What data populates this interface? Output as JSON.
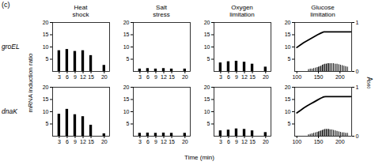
{
  "title": "(c)",
  "xlabel": "Time (min)",
  "ylabel": "mRNA induction ratio",
  "y2label": "A₅₆₀",
  "chart_data": [
    {
      "type": "bar",
      "title": "Heat\nshock",
      "annotations": [
        "groEL"
      ],
      "color": "black",
      "x": [
        3,
        6,
        9,
        12,
        15,
        20
      ],
      "values": [
        8.5,
        9.0,
        8.2,
        8.5,
        6.5,
        2.5
      ],
      "xlim": [
        0.5,
        22
      ],
      "xticks": [
        3,
        6,
        9,
        12,
        15,
        20
      ],
      "ylim": [
        0,
        20
      ],
      "yticks": [
        5,
        10,
        15,
        20
      ]
    },
    {
      "type": "bar",
      "title": "Salt\nstress",
      "color": "black",
      "x": [
        3,
        6,
        9,
        12,
        15,
        20
      ],
      "values": [
        1.0,
        1.2,
        1.0,
        1.2,
        1.0,
        1.0
      ],
      "xlim": [
        0.5,
        22
      ],
      "xticks": [
        3,
        6,
        9,
        12,
        15,
        20
      ],
      "ylim": [
        0,
        20
      ],
      "yticks": [
        5,
        10,
        15,
        20
      ]
    },
    {
      "type": "bar",
      "title": "Oxygen\nlimitation",
      "color": "black",
      "x": [
        3,
        6,
        9,
        12,
        15,
        20
      ],
      "values": [
        3.5,
        4.0,
        4.2,
        3.8,
        3.0,
        1.8
      ],
      "xlim": [
        0.5,
        22
      ],
      "xticks": [
        3,
        6,
        9,
        12,
        15,
        20
      ],
      "ylim": [
        0,
        20
      ],
      "yticks": [
        5,
        10,
        15,
        20
      ]
    },
    {
      "type": "line",
      "title": "Glucose\nlimitation",
      "xlim": [
        95,
        227
      ],
      "xticks": [
        100,
        150,
        200
      ],
      "ylim": [
        0,
        20
      ],
      "yticks": [
        5,
        10,
        15,
        20
      ],
      "y2lim": [
        0,
        1
      ],
      "y2ticks": [
        0,
        1
      ],
      "series": [
        {
          "type": "line",
          "color": "black",
          "x": [
            100,
            108,
            116,
            124,
            132,
            140,
            148,
            155,
            160,
            163,
            167,
            175,
            185,
            200,
            215,
            225
          ],
          "values": [
            9.8,
            10.8,
            11.8,
            12.6,
            13.4,
            14.2,
            15.0,
            15.6,
            16.0,
            16.2,
            16.2,
            16.2,
            16.2,
            16.2,
            16.2,
            16.2
          ]
        },
        {
          "type": "bar",
          "axis": "y2",
          "color": "black",
          "x": [
            128,
            132,
            136,
            140,
            144,
            148,
            151,
            154,
            157,
            160,
            163,
            166,
            169,
            172,
            175,
            178,
            182,
            186,
            190,
            194,
            198,
            202,
            206,
            210,
            214,
            218
          ],
          "values": [
            0.04,
            0.05,
            0.05,
            0.06,
            0.07,
            0.08,
            0.09,
            0.1,
            0.11,
            0.13,
            0.14,
            0.15,
            0.15,
            0.16,
            0.16,
            0.16,
            0.16,
            0.16,
            0.15,
            0.15,
            0.14,
            0.13,
            0.12,
            0.11,
            0.1,
            0.09
          ]
        }
      ]
    },
    {
      "type": "bar",
      "annotations": [
        "dnaK"
      ],
      "color": "black",
      "x": [
        3,
        6,
        9,
        12,
        15,
        20
      ],
      "values": [
        9.0,
        11.0,
        8.8,
        8.0,
        4.5,
        1.0
      ],
      "xlim": [
        0.5,
        22
      ],
      "xticks": [
        3,
        6,
        9,
        12,
        15,
        20
      ],
      "ylim": [
        0,
        20
      ],
      "yticks": [
        5,
        10,
        15,
        20
      ]
    },
    {
      "type": "bar",
      "color": "black",
      "x": [
        3,
        6,
        9,
        12,
        15,
        20
      ],
      "values": [
        1.2,
        1.3,
        1.2,
        1.3,
        1.2,
        1.2
      ],
      "xlim": [
        0.5,
        22
      ],
      "xticks": [
        3,
        6,
        9,
        12,
        15,
        20
      ],
      "ylim": [
        0,
        20
      ],
      "yticks": [
        5,
        10,
        15,
        20
      ]
    },
    {
      "type": "bar",
      "color": "black",
      "x": [
        3,
        6,
        9,
        12,
        15,
        20
      ],
      "values": [
        2.2,
        2.5,
        3.0,
        2.8,
        2.2,
        1.5
      ],
      "xlim": [
        0.5,
        22
      ],
      "xticks": [
        3,
        6,
        9,
        12,
        15,
        20
      ],
      "ylim": [
        0,
        20
      ],
      "yticks": [
        5,
        10,
        15,
        20
      ]
    },
    {
      "type": "line",
      "xlim": [
        95,
        227
      ],
      "xticks": [
        100,
        150,
        200
      ],
      "ylim": [
        0,
        20
      ],
      "yticks": [
        5,
        10,
        15,
        20
      ],
      "y2lim": [
        0,
        1
      ],
      "y2ticks": [
        0,
        1
      ],
      "series": [
        {
          "type": "line",
          "color": "black",
          "x": [
            100,
            108,
            116,
            124,
            132,
            140,
            148,
            155,
            160,
            163,
            167,
            175,
            185,
            200,
            215,
            225
          ],
          "values": [
            9.5,
            10.5,
            11.5,
            12.4,
            13.2,
            14.0,
            14.8,
            15.5,
            15.9,
            16.1,
            16.2,
            16.2,
            16.2,
            16.2,
            16.2,
            16.2
          ]
        },
        {
          "type": "bar",
          "axis": "y2",
          "color": "black",
          "x": [
            128,
            132,
            136,
            140,
            144,
            148,
            151,
            154,
            157,
            160,
            163,
            166,
            169,
            172,
            175,
            178,
            182,
            186,
            190,
            194,
            198,
            202,
            206,
            210,
            214,
            218
          ],
          "values": [
            0.03,
            0.04,
            0.05,
            0.06,
            0.07,
            0.08,
            0.09,
            0.1,
            0.11,
            0.12,
            0.13,
            0.14,
            0.14,
            0.14,
            0.14,
            0.13,
            0.13,
            0.12,
            0.11,
            0.1,
            0.09,
            0.08,
            0.07,
            0.07,
            0.06,
            0.06
          ]
        }
      ]
    }
  ]
}
